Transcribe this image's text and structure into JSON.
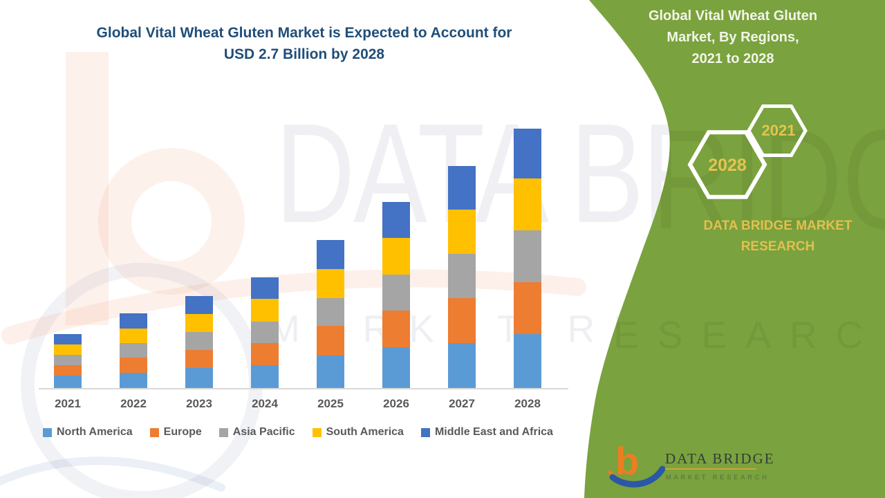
{
  "main_chart": {
    "title_line1": "Global Vital Wheat Gluten Market is Expected to Account for",
    "title_line2": "USD 2.7 Billion by 2028",
    "title_color": "#1F4E79"
  },
  "chart_data": {
    "type": "bar",
    "stacked": true,
    "title": "Global Vital Wheat Gluten Market is Expected to Account for USD 2.7 Billion by 2028",
    "xlabel": "",
    "ylabel": "",
    "unit": "USD Billion",
    "grid": false,
    "y_axis_shown": false,
    "legend_position": "bottom",
    "categories": [
      "2021",
      "2022",
      "2023",
      "2024",
      "2025",
      "2026",
      "2027",
      "2028"
    ],
    "series": [
      {
        "name": "North America",
        "color": "#5B9BD5",
        "values": [
          0.13,
          0.16,
          0.21,
          0.24,
          0.34,
          0.42,
          0.47,
          0.56
        ]
      },
      {
        "name": "Europe",
        "color": "#ED7D31",
        "values": [
          0.11,
          0.16,
          0.19,
          0.23,
          0.31,
          0.38,
          0.47,
          0.54
        ]
      },
      {
        "name": "Asia Pacific",
        "color": "#A5A5A5",
        "values": [
          0.11,
          0.15,
          0.19,
          0.22,
          0.29,
          0.37,
          0.46,
          0.54
        ]
      },
      {
        "name": "South America",
        "color": "#FFC000",
        "values": [
          0.11,
          0.15,
          0.19,
          0.24,
          0.3,
          0.38,
          0.46,
          0.54
        ]
      },
      {
        "name": "Middle East and Africa",
        "color": "#4472C4",
        "values": [
          0.11,
          0.16,
          0.19,
          0.22,
          0.3,
          0.37,
          0.45,
          0.52
        ]
      }
    ],
    "totals": [
      0.57,
      0.79,
      0.97,
      1.15,
      1.54,
      1.92,
      2.31,
      2.7
    ]
  },
  "side_panel": {
    "title_line1": "Global Vital Wheat Gluten",
    "title_line2": "Market, By Regions,",
    "title_line3": "2021 to 2028",
    "hexagon_large_label": "2028",
    "hexagon_small_label": "2021",
    "brand_line1": "DATA BRIDGE MARKET",
    "brand_line2": "RESEARCH",
    "panel_color": "#7AA23E",
    "gold_color": "#E2C04F"
  },
  "watermark": {
    "word1": "DATA BRIDGE",
    "word2": "MARKET RESEARCH"
  },
  "logo": {
    "glyph": "b",
    "name": "DATA BRIDGE",
    "subtitle": "MARKET RESEARCH"
  }
}
